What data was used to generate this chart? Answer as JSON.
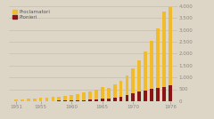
{
  "years": [
    1951,
    1952,
    1953,
    1954,
    1955,
    1956,
    1957,
    1958,
    1959,
    1960,
    1961,
    1962,
    1963,
    1964,
    1965,
    1966,
    1967,
    1968,
    1969,
    1970,
    1971,
    1972,
    1973,
    1974,
    1975,
    1976
  ],
  "proclamatori": [
    55,
    80,
    100,
    115,
    130,
    150,
    170,
    200,
    230,
    270,
    310,
    360,
    420,
    500,
    600,
    560,
    720,
    870,
    1070,
    1380,
    1720,
    2100,
    2550,
    3050,
    3750,
    3950
  ],
  "pionieri": [
    4,
    5,
    7,
    8,
    10,
    12,
    14,
    18,
    22,
    28,
    35,
    45,
    58,
    72,
    90,
    90,
    140,
    190,
    270,
    340,
    400,
    460,
    520,
    570,
    610,
    650
  ],
  "proclamatori_color": "#F0BC2E",
  "pionieri_color": "#8B1515",
  "background_color": "#DDD5C5",
  "grid_color": "#C5BDB0",
  "legend_labels": [
    "Proclamatori",
    "Pionieri"
  ],
  "ylim": [
    0,
    4000
  ],
  "yticks": [
    0,
    500,
    1000,
    1500,
    2000,
    2500,
    3000,
    3500,
    4000
  ],
  "xticks": [
    1951,
    1955,
    1960,
    1965,
    1970,
    1976
  ],
  "bar_width": 0.55
}
